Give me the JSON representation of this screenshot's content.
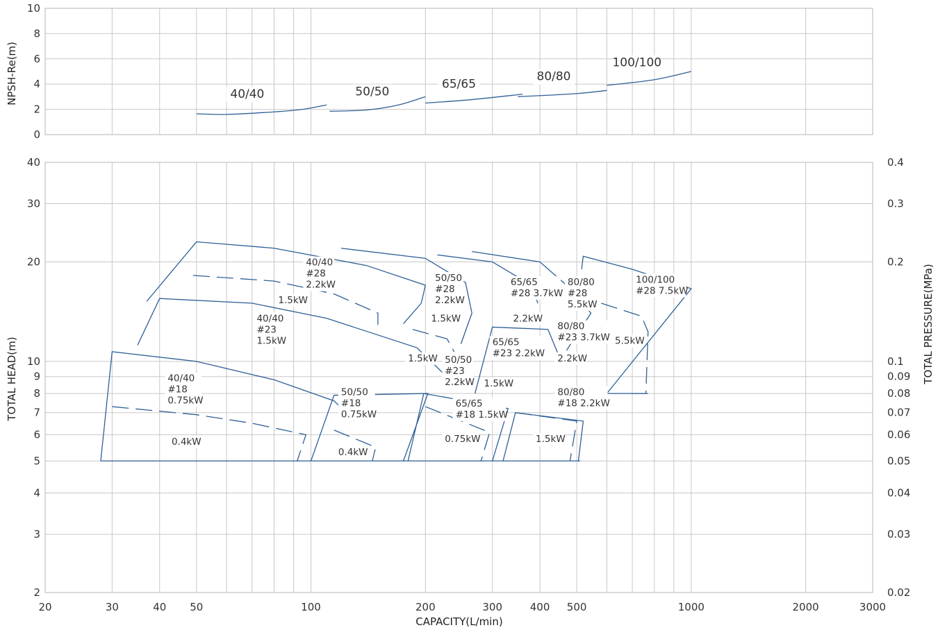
{
  "chart_data": [
    {
      "type": "line",
      "panel": "npsh",
      "ylabel": "NPSH-Re(m)",
      "xlabel": "",
      "ylim": [
        0,
        10
      ],
      "y_ticks": [
        "0",
        "2",
        "4",
        "6",
        "8",
        "10"
      ],
      "x_scale": "log",
      "xlim": [
        20,
        3000
      ],
      "grid": true,
      "series": [
        {
          "name": "40/40",
          "points": [
            [
              50,
              1.65
            ],
            [
              60,
              1.6
            ],
            [
              80,
              1.8
            ],
            [
              95,
              2.0
            ],
            [
              110,
              2.35
            ]
          ],
          "label_at": [
            68,
            2.9
          ]
        },
        {
          "name": "50/50",
          "points": [
            [
              112,
              1.85
            ],
            [
              140,
              1.95
            ],
            [
              170,
              2.35
            ],
            [
              200,
              3.0
            ]
          ],
          "label_at": [
            145,
            3.1
          ]
        },
        {
          "name": "65/65",
          "points": [
            [
              200,
              2.5
            ],
            [
              260,
              2.75
            ],
            [
              360,
              3.2
            ]
          ],
          "label_at": [
            245,
            3.7
          ]
        },
        {
          "name": "80/80",
          "points": [
            [
              350,
              3.0
            ],
            [
              500,
              3.25
            ],
            [
              600,
              3.5
            ]
          ],
          "label_at": [
            435,
            4.3
          ]
        },
        {
          "name": "100/100",
          "points": [
            [
              600,
              3.9
            ],
            [
              800,
              4.35
            ],
            [
              1000,
              5.0
            ]
          ],
          "label_at": [
            720,
            5.4
          ]
        }
      ]
    },
    {
      "type": "line",
      "panel": "performance",
      "xlabel": "CAPACITY(L/min)",
      "ylabel": "TOTAL HEAD(m)",
      "y2label": "TOTAL PRESSURE(MPa)",
      "x_scale": "log",
      "y_scale": "log",
      "xlim": [
        20,
        3000
      ],
      "ylim": [
        2,
        40
      ],
      "x_ticks": [
        "20",
        "30",
        "40",
        "50",
        "100",
        "200",
        "300",
        "400",
        "500",
        "1000",
        "2000",
        "3000"
      ],
      "y_ticks": [
        "2",
        "3",
        "4",
        "5",
        "6",
        "7",
        "8",
        "9",
        "10",
        "20",
        "30",
        "40"
      ],
      "y2_ticks": [
        "0.02",
        "0.03",
        "0.04",
        "0.05",
        "0.06",
        "0.07",
        "0.08",
        "0.09",
        "0.1",
        "0.2",
        "0.3",
        "0.4"
      ],
      "grid": true,
      "series": [
        {
          "name": "40/40 #28",
          "role": "outline",
          "points": [
            [
              37,
              15.2
            ],
            [
              50,
              23.0
            ],
            [
              80,
              22.0
            ],
            [
              140,
              19.5
            ],
            [
              200,
              17.0
            ],
            [
              195,
              15.0
            ],
            [
              175,
              13.0
            ]
          ]
        },
        {
          "name": "40/40 #28 dashed",
          "role": "dash",
          "points": [
            [
              49,
              18.2
            ],
            [
              80,
              17.5
            ],
            [
              115,
              16.0
            ],
            [
              150,
              14.0
            ],
            [
              150,
              12.9
            ]
          ]
        },
        {
          "name": "40/40 #23",
          "role": "outline",
          "points": [
            [
              35,
              11.2
            ],
            [
              40,
              15.5
            ],
            [
              70,
              15.0
            ],
            [
              110,
              13.5
            ],
            [
              190,
              11.0
            ],
            [
              225,
              9.1
            ]
          ]
        },
        {
          "name": "40/40 #18",
          "role": "outline",
          "points": [
            [
              28,
              5.0
            ],
            [
              30,
              10.7
            ],
            [
              50,
              10.0
            ],
            [
              80,
              8.8
            ],
            [
              115,
              7.6
            ],
            [
              130,
              6.6
            ]
          ]
        },
        {
          "name": "40/40 #18 dashed",
          "role": "dash",
          "points": [
            [
              30,
              7.3
            ],
            [
              50,
              6.9
            ],
            [
              70,
              6.5
            ],
            [
              97,
              6.0
            ],
            [
              92,
              5.0
            ]
          ]
        },
        {
          "name": "50/50 #28",
          "role": "outline",
          "points": [
            [
              120,
              22.0
            ],
            [
              200,
              20.5
            ],
            [
              255,
              17.3
            ],
            [
              265,
              14.0
            ],
            [
              248,
              11.3
            ]
          ]
        },
        {
          "name": "50/50 #28 dashed",
          "role": "dash",
          "points": [
            [
              185,
              12.5
            ],
            [
              228,
              11.7
            ],
            [
              238,
              10.7
            ]
          ]
        },
        {
          "name": "50/50 #18",
          "role": "outline",
          "points": [
            [
              100,
              5.0
            ],
            [
              115,
              7.9
            ],
            [
              203,
              8.0
            ],
            [
              175,
              5.0
            ]
          ]
        },
        {
          "name": "50/50 #18 dashed",
          "role": "dash",
          "points": [
            [
              115,
              6.2
            ],
            [
              148,
              5.5
            ],
            [
              145,
              5.0
            ]
          ]
        },
        {
          "name": "65/65 #28",
          "role": "outline",
          "points": [
            [
              215,
              21.0
            ],
            [
              300,
              20.0
            ],
            [
              380,
              17.0
            ],
            [
              395,
              15.0
            ]
          ]
        },
        {
          "name": "65/65 #23",
          "role": "outline",
          "points": [
            [
              270,
              8.0
            ],
            [
              300,
              12.7
            ],
            [
              420,
              12.5
            ],
            [
              455,
              10.0
            ]
          ]
        },
        {
          "name": "65/65 #18",
          "role": "outline",
          "points": [
            [
              180,
              5.0
            ],
            [
              198,
              8.0
            ],
            [
              330,
              7.2
            ],
            [
              300,
              5.0
            ]
          ]
        },
        {
          "name": "65/65 #18 dashed",
          "role": "dash",
          "points": [
            [
              200,
              7.3
            ],
            [
              295,
              6.1
            ],
            [
              280,
              5.0
            ]
          ]
        },
        {
          "name": "80/80 #28",
          "role": "outline",
          "points": [
            [
              265,
              21.5
            ],
            [
              400,
              20.0
            ],
            [
              470,
              17.0
            ],
            [
              545,
              14.0
            ],
            [
              470,
              10.8
            ]
          ]
        },
        {
          "name": "80/80 #18",
          "role": "outline",
          "points": [
            [
              320,
              5.0
            ],
            [
              345,
              7.0
            ],
            [
              520,
              6.6
            ],
            [
              505,
              5.0
            ]
          ]
        },
        {
          "name": "80/80 #18 dashed",
          "role": "dash",
          "points": [
            [
              345,
              7.0
            ],
            [
              500,
              6.6
            ],
            [
              480,
              5.0
            ]
          ]
        },
        {
          "name": "100/100 #28",
          "role": "outline",
          "points": [
            [
              515,
              19.0
            ],
            [
              520,
              20.8
            ],
            [
              700,
              19.0
            ],
            [
              1000,
              16.6
            ],
            [
              600,
              8.0
            ]
          ]
        },
        {
          "name": "100/100 #28 dashed",
          "role": "dash",
          "points": [
            [
              580,
              15.0
            ],
            [
              740,
              13.7
            ],
            [
              770,
              12.3
            ],
            [
              760,
              8.0
            ],
            [
              690,
              8.0
            ]
          ]
        }
      ],
      "labels": [
        {
          "lines": [
            "40/40",
            "#28",
            "2.2kW"
          ],
          "at": [
            97,
            19.5
          ]
        },
        {
          "lines": [
            "1.5kW"
          ],
          "at": [
            82,
            15.0
          ]
        },
        {
          "lines": [
            "40/40",
            "#23",
            "1.5kW"
          ],
          "at": [
            72,
            13.2
          ]
        },
        {
          "lines": [
            "40/40",
            "#18",
            "0.75kW"
          ],
          "at": [
            42,
            8.7
          ]
        },
        {
          "lines": [
            "0.4kW"
          ],
          "at": [
            43,
            5.6
          ]
        },
        {
          "lines": [
            "50/50",
            "#28",
            "2.2kW"
          ],
          "at": [
            212,
            17.5
          ]
        },
        {
          "lines": [
            "1.5kW"
          ],
          "at": [
            207,
            13.2
          ]
        },
        {
          "lines": [
            "50/50",
            "#23",
            "2.2kW"
          ],
          "at": [
            225,
            9.9
          ]
        },
        {
          "lines": [
            "1.5kW"
          ],
          "at": [
            180,
            10.0
          ]
        },
        {
          "lines": [
            "50/50",
            "#18",
            "0.75kW"
          ],
          "at": [
            120,
            7.9
          ]
        },
        {
          "lines": [
            "0.4kW"
          ],
          "at": [
            118,
            5.2
          ]
        },
        {
          "lines": [
            "65/65",
            "#28 3.7kW"
          ],
          "at": [
            335,
            17.0
          ]
        },
        {
          "lines": [
            "2.2kW"
          ],
          "at": [
            340,
            13.2
          ]
        },
        {
          "lines": [
            "65/65",
            "#23 2.2kW"
          ],
          "at": [
            300,
            11.2
          ]
        },
        {
          "lines": [
            "1.5kW"
          ],
          "at": [
            285,
            8.4
          ]
        },
        {
          "lines": [
            "65/65",
            "#18 1.5kW"
          ],
          "at": [
            240,
            7.3
          ]
        },
        {
          "lines": [
            "0.75kW"
          ],
          "at": [
            225,
            5.7
          ]
        },
        {
          "lines": [
            "1.5kW"
          ],
          "at": [
            390,
            5.7
          ]
        },
        {
          "lines": [
            "80/80",
            "#28",
            "5.5kW"
          ],
          "at": [
            473,
            17.0
          ]
        },
        {
          "lines": [
            "80/80",
            "#23 3.7kW"
          ],
          "at": [
            445,
            12.5
          ]
        },
        {
          "lines": [
            "2.2kW"
          ],
          "at": [
            445,
            10.0
          ]
        },
        {
          "lines": [
            "80/80",
            "#18 2.2kW"
          ],
          "at": [
            445,
            7.9
          ]
        },
        {
          "lines": [
            "100/100",
            "#28 7.5kW"
          ],
          "at": [
            715,
            17.3
          ]
        },
        {
          "lines": [
            "5.5kW"
          ],
          "at": [
            630,
            11.3
          ]
        }
      ]
    }
  ]
}
